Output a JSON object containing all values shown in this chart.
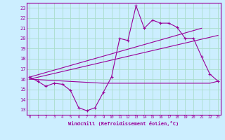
{
  "xlabel": "Windchill (Refroidissement éolien,°C)",
  "bg_color": "#cceeff",
  "grid_color": "#aaddcc",
  "line_color": "#990099",
  "x_ticks": [
    0,
    1,
    2,
    3,
    4,
    5,
    6,
    7,
    8,
    9,
    10,
    11,
    12,
    13,
    14,
    15,
    16,
    17,
    18,
    19,
    20,
    21,
    22,
    23
  ],
  "y_ticks": [
    13,
    14,
    15,
    16,
    17,
    18,
    19,
    20,
    21,
    22,
    23
  ],
  "xlim": [
    -0.3,
    23.3
  ],
  "ylim": [
    12.5,
    23.5
  ],
  "line1_x": [
    0,
    1,
    2,
    3,
    4,
    5,
    6,
    7,
    8,
    9,
    10,
    11,
    12,
    13,
    14,
    15,
    16,
    17,
    18,
    19,
    20,
    21,
    22,
    23
  ],
  "line1_y": [
    16.2,
    15.8,
    15.3,
    15.6,
    15.5,
    14.9,
    13.2,
    12.9,
    13.2,
    14.7,
    16.2,
    20.0,
    19.8,
    23.2,
    21.0,
    21.8,
    21.5,
    21.5,
    21.1,
    20.0,
    20.0,
    18.2,
    16.5,
    15.8
  ],
  "line2_x": [
    0,
    21
  ],
  "line2_y": [
    16.2,
    21.0
  ],
  "line3_x": [
    0,
    23
  ],
  "line3_y": [
    16.0,
    20.3
  ],
  "line4_x": [
    0,
    9,
    16,
    22,
    23
  ],
  "line4_y": [
    16.0,
    15.6,
    15.6,
    15.6,
    15.8
  ]
}
